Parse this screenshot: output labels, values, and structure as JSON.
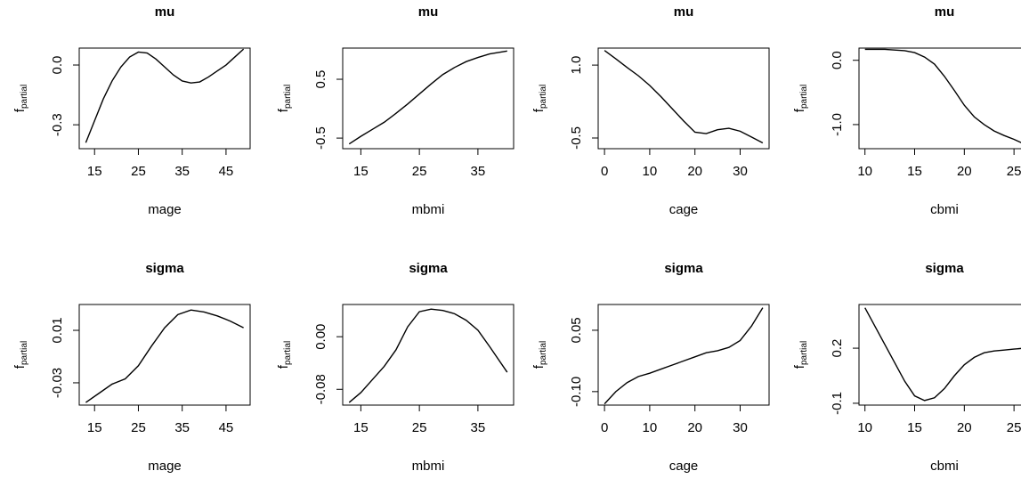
{
  "chart_data": [
    {
      "type": "line",
      "title": "mu",
      "xlabel": "mage",
      "ylabel": "f",
      "ylabel_subscript": "partial",
      "color": "#000000",
      "x": [
        13,
        15,
        17,
        19,
        21,
        23,
        25,
        27,
        29,
        31,
        33,
        35,
        37,
        39,
        41,
        43,
        45,
        47,
        49
      ],
      "values": [
        -0.39,
        -0.28,
        -0.17,
        -0.08,
        -0.01,
        0.04,
        0.065,
        0.06,
        0.03,
        -0.01,
        -0.05,
        -0.08,
        -0.09,
        -0.085,
        -0.06,
        -0.03,
        0.0,
        0.04,
        0.08
      ],
      "xlim": [
        11.5,
        50.5
      ],
      "xticks": [
        15,
        25,
        35,
        45
      ],
      "ylim": [
        -0.42,
        0.085
      ],
      "yticks": [
        {
          "value": 0,
          "label": "0.0"
        },
        -0.3
      ]
    },
    {
      "type": "line",
      "title": "mu",
      "xlabel": "mbmi",
      "ylabel": "f",
      "ylabel_subscript": "partial",
      "color": "#000000",
      "x": [
        13,
        15,
        17,
        19,
        21,
        23,
        25,
        27,
        29,
        31,
        33,
        35,
        37,
        40
      ],
      "values": [
        -0.6,
        -0.47,
        -0.35,
        -0.23,
        -0.08,
        0.08,
        0.25,
        0.42,
        0.58,
        0.7,
        0.8,
        0.87,
        0.93,
        0.98
      ],
      "xlim": [
        11.9,
        41.1
      ],
      "xticks": [
        15,
        25,
        35
      ],
      "ylim": [
        -0.68,
        1.03
      ],
      "yticks": [
        -0.5,
        0.5
      ]
    },
    {
      "type": "line",
      "title": "mu",
      "xlabel": "cage",
      "ylabel": "f",
      "ylabel_subscript": "partial",
      "color": "#000000",
      "x": [
        0,
        2.5,
        5,
        7.5,
        10,
        12.5,
        15,
        17.5,
        20,
        22.5,
        25,
        27.5,
        30,
        32.5,
        35
      ],
      "values": [
        1.3,
        1.13,
        0.95,
        0.78,
        0.58,
        0.35,
        0.1,
        -0.15,
        -0.38,
        -0.41,
        -0.33,
        -0.3,
        -0.36,
        -0.48,
        -0.6
      ],
      "xlim": [
        -1.4,
        36.4
      ],
      "xticks": [
        0,
        10,
        20,
        30
      ],
      "ylim": [
        -0.72,
        1.35
      ],
      "yticks": [
        -0.5,
        {
          "value": 1,
          "label": "1.0"
        }
      ]
    },
    {
      "type": "line",
      "title": "mu",
      "xlabel": "cbmi",
      "ylabel": "f",
      "ylabel_subscript": "partial",
      "color": "#000000",
      "x": [
        10,
        11,
        12,
        13,
        14,
        15,
        16,
        17,
        18,
        19,
        20,
        21,
        22,
        23,
        24,
        25,
        26
      ],
      "values": [
        0.17,
        0.17,
        0.17,
        0.16,
        0.15,
        0.12,
        0.05,
        -0.06,
        -0.25,
        -0.47,
        -0.7,
        -0.88,
        -1.0,
        -1.1,
        -1.17,
        -1.23,
        -1.3
      ],
      "xlim": [
        9.4,
        26.6
      ],
      "xticks": [
        10,
        15,
        20,
        25
      ],
      "ylim": [
        -1.375,
        0.19
      ],
      "yticks": [
        {
          "value": -1,
          "label": "-1.0"
        },
        {
          "value": 0,
          "label": "0.0"
        }
      ]
    },
    {
      "type": "line",
      "title": "sigma",
      "xlabel": "mage",
      "ylabel": "f",
      "ylabel_subscript": "partial",
      "color": "#000000",
      "x": [
        13,
        16,
        19,
        22,
        25,
        28,
        31,
        34,
        37,
        40,
        43,
        46,
        49
      ],
      "values": [
        -0.045,
        -0.038,
        -0.031,
        -0.027,
        -0.017,
        -0.002,
        0.012,
        0.022,
        0.0255,
        0.024,
        0.021,
        0.017,
        0.012
      ],
      "xlim": [
        11.5,
        50.5
      ],
      "xticks": [
        15,
        25,
        35,
        45
      ],
      "ylim": [
        -0.047,
        0.0297
      ],
      "yticks": [
        -0.03,
        0.01
      ]
    },
    {
      "type": "line",
      "title": "sigma",
      "xlabel": "mbmi",
      "ylabel": "f",
      "ylabel_subscript": "partial",
      "color": "#000000",
      "x": [
        13,
        15,
        17,
        19,
        21,
        23,
        25,
        27,
        29,
        31,
        33,
        35,
        37,
        40
      ],
      "values": [
        -0.1,
        -0.085,
        -0.065,
        -0.045,
        -0.02,
        0.015,
        0.038,
        0.042,
        0.04,
        0.035,
        0.025,
        0.01,
        -0.015,
        -0.054
      ],
      "xlim": [
        11.9,
        41.1
      ],
      "xticks": [
        15,
        25,
        35
      ],
      "ylim": [
        -0.104,
        0.049
      ],
      "yticks": [
        -0.08,
        {
          "value": 0,
          "label": "0.00"
        }
      ]
    },
    {
      "type": "line",
      "title": "sigma",
      "xlabel": "cage",
      "ylabel": "f",
      "ylabel_subscript": "partial",
      "color": "#000000",
      "x": [
        0,
        2.5,
        5,
        7.5,
        10,
        12.5,
        15,
        17.5,
        20,
        22.5,
        25,
        27.5,
        30,
        32.5,
        35
      ],
      "values": [
        -0.13,
        -0.1,
        -0.078,
        -0.063,
        -0.055,
        -0.045,
        -0.035,
        -0.025,
        -0.015,
        -0.005,
        0.0,
        0.008,
        0.025,
        0.06,
        0.105
      ],
      "xlim": [
        -1.4,
        36.4
      ],
      "xticks": [
        0,
        10,
        20,
        30
      ],
      "ylim": [
        -0.133,
        0.113
      ],
      "yticks": [
        {
          "value": -0.1,
          "label": "-0.10"
        },
        0.05
      ]
    },
    {
      "type": "line",
      "title": "sigma",
      "xlabel": "cbmi",
      "ylabel": "f",
      "ylabel_subscript": "partial",
      "color": "#000000",
      "x": [
        10,
        11,
        12,
        13,
        14,
        15,
        16,
        17,
        18,
        19,
        20,
        21,
        22,
        23,
        24,
        25,
        26
      ],
      "values": [
        0.42,
        0.32,
        0.22,
        0.12,
        0.02,
        -0.06,
        -0.085,
        -0.07,
        -0.02,
        0.05,
        0.11,
        0.15,
        0.175,
        0.185,
        0.19,
        0.195,
        0.2
      ],
      "xlim": [
        9.4,
        26.6
      ],
      "xticks": [
        10,
        15,
        20,
        25
      ],
      "ylim": [
        -0.11,
        0.438
      ],
      "yticks": [
        -0.1,
        0.2
      ]
    }
  ]
}
